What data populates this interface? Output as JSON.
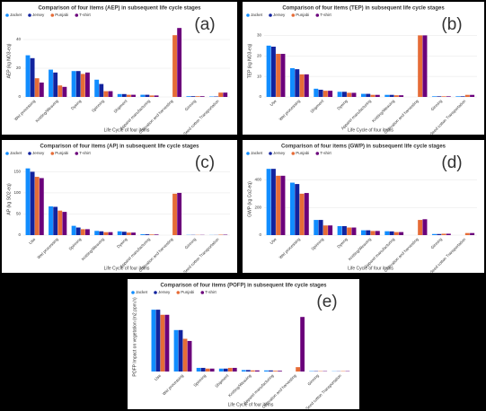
{
  "chart_data": [
    {
      "type": "bar",
      "panel_label": "(a)",
      "title": "Comparison of four items (AEP) in subsequent life cycle stages",
      "x_label": "Life Cycle of four items",
      "y_label": "AEP (kg NO3-eq)",
      "categories": [
        "Wet processing",
        "Knitting/Weaving",
        "Dyeing",
        "Spinning",
        "Shipment",
        "Apparel manufacturing",
        "Cultivation and harvesting",
        "Ginning",
        "Seed cotton Transportation"
      ],
      "series": [
        {
          "name": "Jacket",
          "color": "#118dff",
          "values": [
            29,
            19,
            18,
            12,
            2,
            1.5,
            0,
            0.5,
            0.3
          ]
        },
        {
          "name": "Jersey",
          "color": "#12239e",
          "values": [
            27,
            17,
            18,
            9,
            2,
            1.5,
            0,
            0.5,
            0.3
          ]
        },
        {
          "name": "Punjabi",
          "color": "#e66c37",
          "values": [
            13,
            8,
            16,
            4,
            1.5,
            1,
            43,
            0.5,
            3
          ]
        },
        {
          "name": "T-shirt",
          "color": "#6b007b",
          "values": [
            10,
            7,
            17,
            4,
            1.5,
            1,
            48,
            0.5,
            3
          ]
        }
      ],
      "ylim": [
        0,
        50
      ],
      "yticks": [
        0,
        20,
        40
      ]
    },
    {
      "type": "bar",
      "panel_label": "(b)",
      "title": "Comparison of four items (TEP) in subsequent life cycle stages",
      "x_label": "Life Cycle of four items",
      "y_label": "TEP (kg NO3-eq)",
      "categories": [
        "Use",
        "Wet processing",
        "Shipment",
        "Dyeing",
        "Apparel manufacturing",
        "Knitting/Weaving",
        "Cultivation and harvesting",
        "Ginning",
        "Seed cotton Transportation"
      ],
      "series": [
        {
          "name": "Jacket",
          "color": "#118dff",
          "values": [
            25,
            14,
            4,
            2.5,
            1.5,
            1,
            0,
            0.3,
            0.3
          ]
        },
        {
          "name": "Jersey",
          "color": "#12239e",
          "values": [
            24.5,
            13.5,
            3.5,
            2.5,
            1.5,
            1,
            0,
            0.3,
            0.3
          ]
        },
        {
          "name": "Punjabi",
          "color": "#e66c37",
          "values": [
            21,
            11,
            3,
            2,
            1,
            0.8,
            30,
            0.3,
            1
          ]
        },
        {
          "name": "T-shirt",
          "color": "#6b007b",
          "values": [
            21,
            11,
            3,
            2,
            1,
            0.8,
            30,
            0.3,
            1
          ]
        }
      ],
      "ylim": [
        0,
        35
      ],
      "yticks": [
        0,
        10,
        20,
        30
      ]
    },
    {
      "type": "bar",
      "panel_label": "(c)",
      "title": "Comparison of four items (AP) in subsequent life cycle stages",
      "x_label": "Life Cycle of four items",
      "y_label": "AP (kg SO2-eq)",
      "categories": [
        "Use",
        "Wet processing",
        "Spinning",
        "Knitting/Weaving",
        "Dyeing",
        "Apparel manufacturing",
        "Cultivation and harvesting",
        "Ginning",
        "Seed cotton Transportation"
      ],
      "series": [
        {
          "name": "Jacket",
          "color": "#118dff",
          "values": [
            158,
            68,
            22,
            10,
            9,
            2,
            0,
            0.5,
            0.3
          ]
        },
        {
          "name": "Jersey",
          "color": "#12239e",
          "values": [
            150,
            67,
            18,
            9,
            8,
            2,
            0,
            0.5,
            0.3
          ]
        },
        {
          "name": "Punjabi",
          "color": "#e66c37",
          "values": [
            138,
            58,
            14,
            7,
            6,
            1.5,
            98,
            0.5,
            1
          ]
        },
        {
          "name": "T-shirt",
          "color": "#6b007b",
          "values": [
            135,
            55,
            14,
            7,
            6,
            1.5,
            100,
            0.5,
            1
          ]
        }
      ],
      "ylim": [
        0,
        170
      ],
      "yticks": [
        0,
        50,
        100,
        150
      ]
    },
    {
      "type": "bar",
      "panel_label": "(d)",
      "title": "Comparison of four items (GWP) in subsequent life cycle stages",
      "x_label": "Life Cycle of four items",
      "y_label": "GWP (kg Co2-eq)",
      "categories": [
        "Use",
        "Wet processing",
        "Spinning",
        "Dyeing",
        "Knitting/Weaving",
        "Apparel manufacturing",
        "Cultivation and harvesting",
        "Ginning",
        "Seed cotton Transportation"
      ],
      "series": [
        {
          "name": "Jacket",
          "color": "#118dff",
          "values": [
            480,
            380,
            110,
            65,
            35,
            28,
            0,
            8,
            0
          ]
        },
        {
          "name": "Jersey",
          "color": "#12239e",
          "values": [
            480,
            370,
            110,
            65,
            35,
            27,
            0,
            8,
            0
          ]
        },
        {
          "name": "Punjabi",
          "color": "#e66c37",
          "values": [
            430,
            300,
            70,
            55,
            30,
            22,
            110,
            10,
            15
          ]
        },
        {
          "name": "T-shirt",
          "color": "#6b007b",
          "values": [
            430,
            305,
            70,
            55,
            30,
            22,
            115,
            10,
            15
          ]
        }
      ],
      "ylim": [
        0,
        520
      ],
      "yticks": [
        0,
        200,
        400
      ]
    },
    {
      "type": "bar",
      "panel_label": "(e)",
      "title": "Comparison of four items (POFP) in subsequent life cycle stages",
      "x_label": "Life Cycle of four items",
      "y_label": "POFP Impact on vegetation (m2.ppm.h)",
      "categories": [
        "Use",
        "Wet processing",
        "Spinning",
        "Shipment",
        "Knitting/Weaving",
        "Apparel manufacturing",
        "Cultivation and harvesting",
        "Ginning",
        "Seed cotton Transportation"
      ],
      "series": [
        {
          "name": "Jacket",
          "color": "#118dff",
          "values": [
            85,
            57,
            5,
            4,
            2,
            1.5,
            0,
            0.5,
            0.3
          ]
        },
        {
          "name": "Jersey",
          "color": "#12239e",
          "values": [
            85,
            57,
            5,
            4,
            2,
            1.5,
            0,
            0.5,
            0.3
          ]
        },
        {
          "name": "Punjabi",
          "color": "#e66c37",
          "values": [
            78,
            45,
            4,
            5,
            1.5,
            1,
            6,
            0.5,
            0.5
          ]
        },
        {
          "name": "T-shirt",
          "color": "#6b007b",
          "values": [
            78,
            42,
            4,
            5,
            1.5,
            1,
            75,
            0.5,
            0.5
          ]
        }
      ],
      "ylim": [
        0,
        95
      ]
    }
  ]
}
